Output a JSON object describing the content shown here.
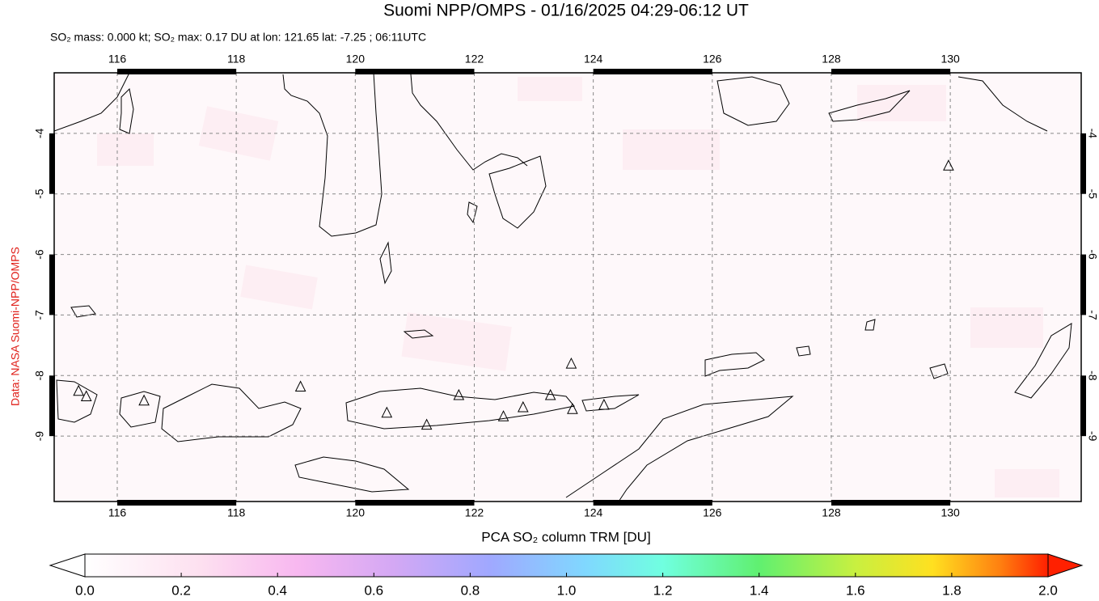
{
  "chart_data": {
    "type": "map",
    "title": "Suomi NPP/OMPS - 01/16/2025 04:29-06:12 UT",
    "subtitle": "SO₂ mass: 0.000 kt; SO₂ max: 0.17 DU at lon: 121.65 lat: -7.25 ; 06:11UTC",
    "credit": "Data: NASA Suomi-NPP/OMPS",
    "xlim": [
      114.94,
      132.2
    ],
    "ylim": [
      -10.08,
      -3.0
    ],
    "xticks": [
      116,
      118,
      120,
      122,
      124,
      126,
      128,
      130
    ],
    "yticks": [
      -4,
      -5,
      -6,
      -7,
      -8,
      -9
    ],
    "grid": true,
    "volcanoes": {
      "lon": [
        115.35,
        115.48,
        116.45,
        119.08,
        120.53,
        121.2,
        121.74,
        122.49,
        122.82,
        123.28,
        123.63,
        123.65,
        124.18,
        129.97
      ],
      "lat": [
        -8.26,
        -8.35,
        -8.42,
        -8.19,
        -8.62,
        -8.82,
        -8.33,
        -8.68,
        -8.53,
        -8.33,
        -7.81,
        -8.56,
        -8.49,
        -4.54
      ]
    },
    "colorbar": {
      "label": "PCA SO₂ column TRM [DU]",
      "lim": [
        0,
        2
      ],
      "ticks": [
        {
          "value": 0,
          "label": "0.0"
        },
        {
          "value": 0.2,
          "label": "0.2"
        },
        {
          "value": 0.4,
          "label": "0.4"
        },
        {
          "value": 0.6,
          "label": "0.6"
        },
        {
          "value": 0.8,
          "label": "0.8"
        },
        {
          "value": 1,
          "label": "1.0"
        },
        {
          "value": 1.2,
          "label": "1.2"
        },
        {
          "value": 1.4,
          "label": "1.4"
        },
        {
          "value": 1.6,
          "label": "1.6"
        },
        {
          "value": 1.8,
          "label": "1.8"
        },
        {
          "value": 2,
          "label": "2.0"
        }
      ]
    }
  }
}
